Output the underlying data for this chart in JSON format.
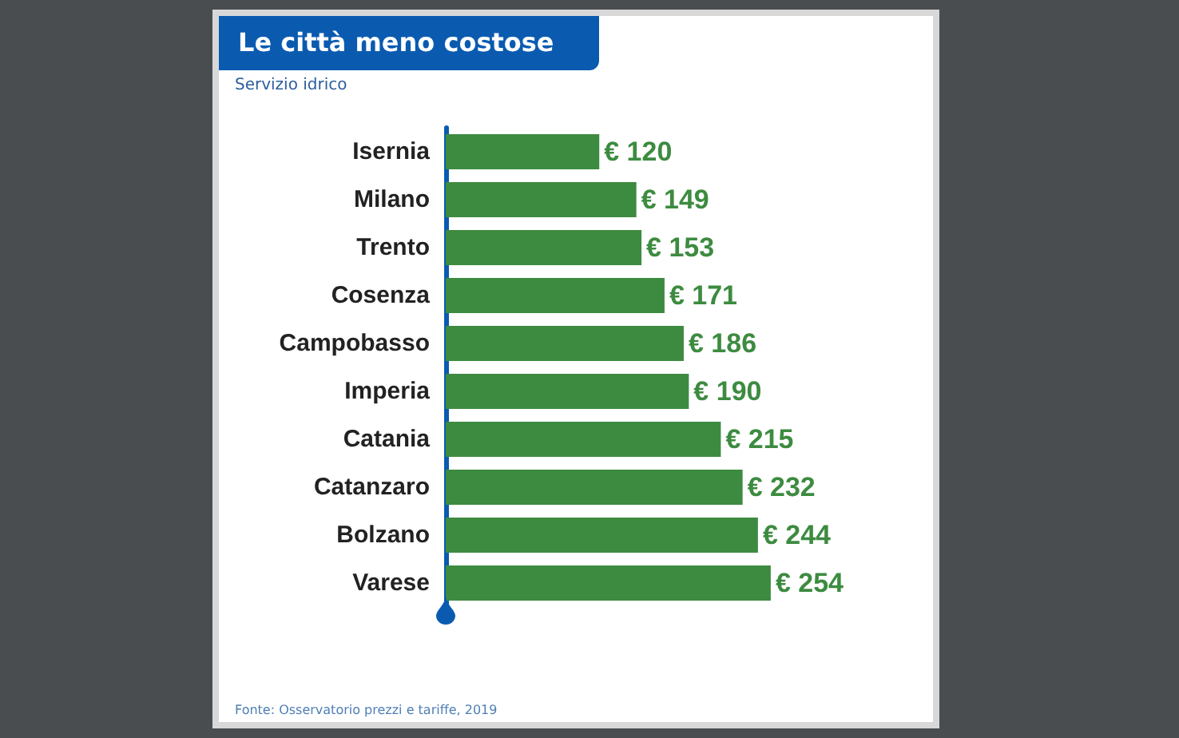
{
  "chart_data": {
    "type": "bar",
    "orientation": "horizontal",
    "title": "Le città meno costose",
    "subtitle": "Servizio idrico",
    "categories": [
      "Isernia",
      "Milano",
      "Trento",
      "Cosenza",
      "Campobasso",
      "Imperia",
      "Catania",
      "Catanzaro",
      "Bolzano",
      "Varese"
    ],
    "values": [
      120,
      149,
      153,
      171,
      186,
      190,
      215,
      232,
      244,
      254
    ],
    "value_labels": [
      "€ 120",
      "€ 149",
      "€ 153",
      "€ 171",
      "€ 186",
      "€ 190",
      "€ 215",
      "€ 232",
      "€ 244",
      "€ 254"
    ],
    "color": "#3d8b40",
    "annotations": [
      "Fonte: Osservatorio prezzi e tariffe, 2019"
    ]
  }
}
